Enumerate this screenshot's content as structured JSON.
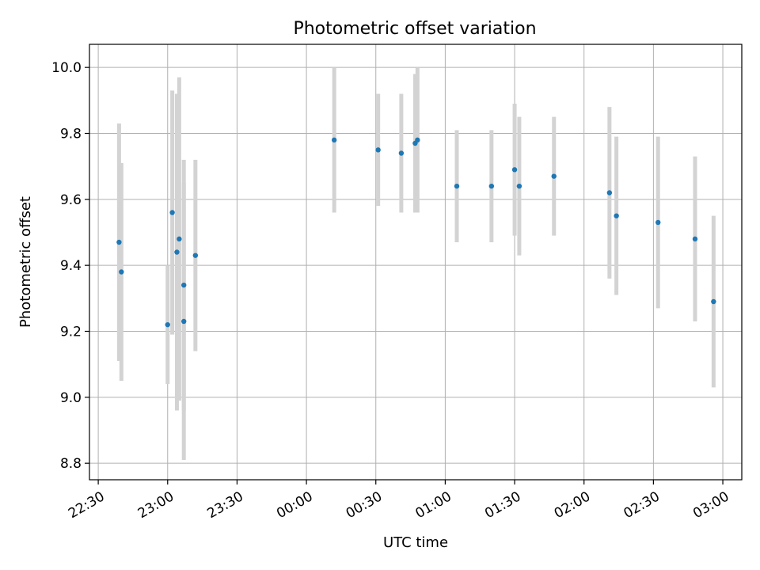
{
  "chart_data": {
    "type": "scatter",
    "title": "Photometric offset variation",
    "xlabel": "UTC time",
    "ylabel": "Photometric offset",
    "ylim": [
      8.75,
      10.07
    ],
    "xlim_minutes": [
      -93.8,
      188.2
    ],
    "grid": true,
    "x_ticks": [
      {
        "label": "22:30",
        "minutes": -90
      },
      {
        "label": "23:00",
        "minutes": -60
      },
      {
        "label": "23:30",
        "minutes": -30
      },
      {
        "label": "00:00",
        "minutes": 0
      },
      {
        "label": "00:30",
        "minutes": 30
      },
      {
        "label": "01:00",
        "minutes": 60
      },
      {
        "label": "01:30",
        "minutes": 90
      },
      {
        "label": "02:00",
        "minutes": 120
      },
      {
        "label": "02:30",
        "minutes": 150
      },
      {
        "label": "03:00",
        "minutes": 180
      }
    ],
    "y_ticks": [
      8.8,
      9.0,
      9.2,
      9.4,
      9.6,
      9.8,
      10.0
    ],
    "marker_color": "#1f77b4",
    "errorbar_color": "#d3d3d3",
    "points": [
      {
        "time": "22:39",
        "y": 9.47,
        "err": 0.36
      },
      {
        "time": "22:40",
        "y": 9.38,
        "err": 0.33
      },
      {
        "time": "23:00",
        "y": 9.22,
        "err": 0.18
      },
      {
        "time": "23:02",
        "y": 9.56,
        "err": 0.37
      },
      {
        "time": "23:04",
        "y": 9.44,
        "err": 0.48
      },
      {
        "time": "23:05",
        "y": 9.48,
        "err": 0.49
      },
      {
        "time": "23:07",
        "y": 9.34,
        "err": 0.38
      },
      {
        "time": "23:07",
        "y": 9.23,
        "err": 0.42
      },
      {
        "time": "23:12",
        "y": 9.43,
        "err": 0.29
      },
      {
        "time": "00:12",
        "y": 9.78,
        "err": 0.22
      },
      {
        "time": "00:31",
        "y": 9.75,
        "err": 0.17
      },
      {
        "time": "00:41",
        "y": 9.74,
        "err": 0.18
      },
      {
        "time": "00:47",
        "y": 9.77,
        "err": 0.21
      },
      {
        "time": "00:48",
        "y": 9.78,
        "err": 0.22
      },
      {
        "time": "01:05",
        "y": 9.64,
        "err": 0.17
      },
      {
        "time": "01:20",
        "y": 9.64,
        "err": 0.17
      },
      {
        "time": "01:30",
        "y": 9.69,
        "err": 0.2
      },
      {
        "time": "01:32",
        "y": 9.64,
        "err": 0.21
      },
      {
        "time": "01:47",
        "y": 9.67,
        "err": 0.18
      },
      {
        "time": "02:11",
        "y": 9.62,
        "err": 0.26
      },
      {
        "time": "02:14",
        "y": 9.55,
        "err": 0.24
      },
      {
        "time": "02:32",
        "y": 9.53,
        "err": 0.26
      },
      {
        "time": "02:48",
        "y": 9.48,
        "err": 0.25
      },
      {
        "time": "02:56",
        "y": 9.29,
        "err": 0.26
      }
    ]
  }
}
